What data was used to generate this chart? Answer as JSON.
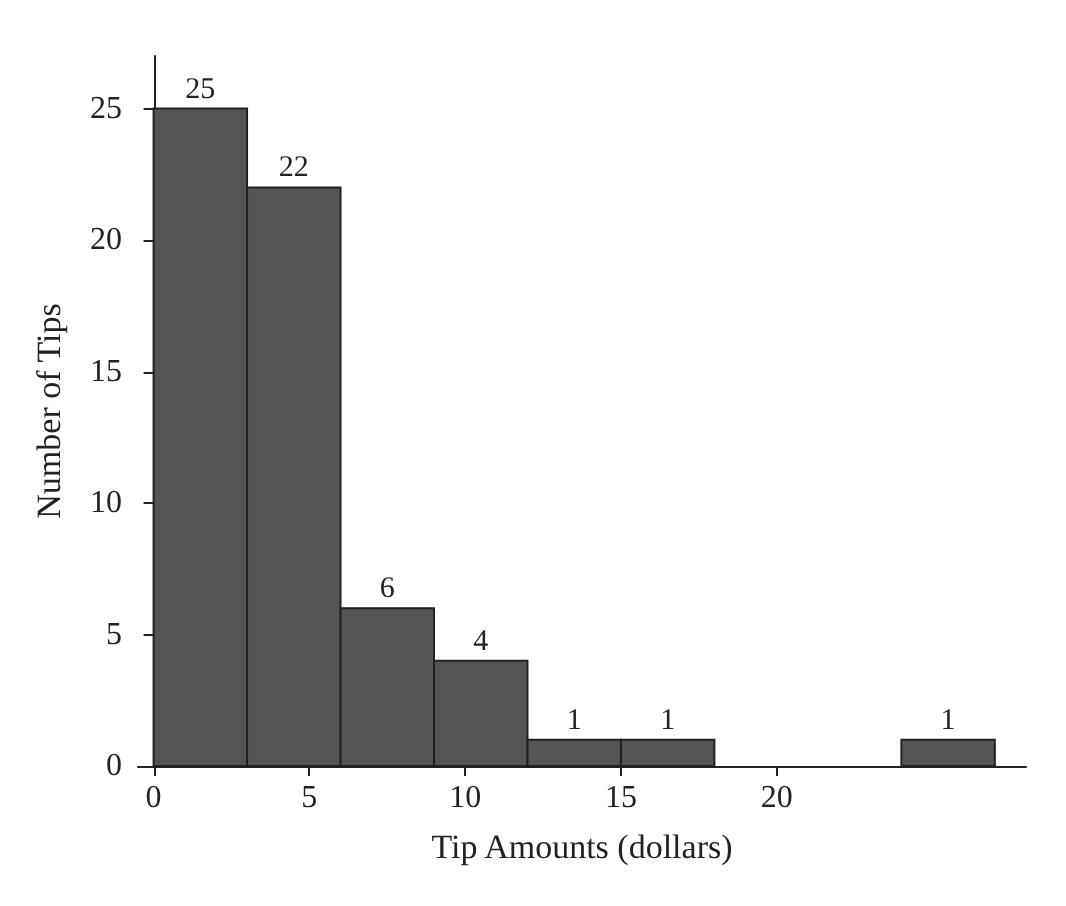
{
  "chart_data": {
    "type": "histogram",
    "xlabel": "Tip Amounts (dollars)",
    "ylabel": "Number of Tips",
    "bins": [
      0,
      3,
      6,
      9,
      12,
      15,
      18,
      21,
      24,
      27
    ],
    "values": [
      25,
      22,
      6,
      4,
      1,
      1,
      0,
      0,
      1
    ],
    "value_labels": [
      "25",
      "22",
      "6",
      "4",
      "1",
      "1",
      null,
      null,
      "1"
    ],
    "color": "#555555",
    "xlim": [
      -0.5,
      28
    ],
    "xticks": [
      0,
      5,
      10,
      15,
      20
    ],
    "ylim": [
      0,
      27
    ],
    "yticks": [
      0,
      5,
      10,
      15,
      20,
      25
    ],
    "grid": false
  }
}
